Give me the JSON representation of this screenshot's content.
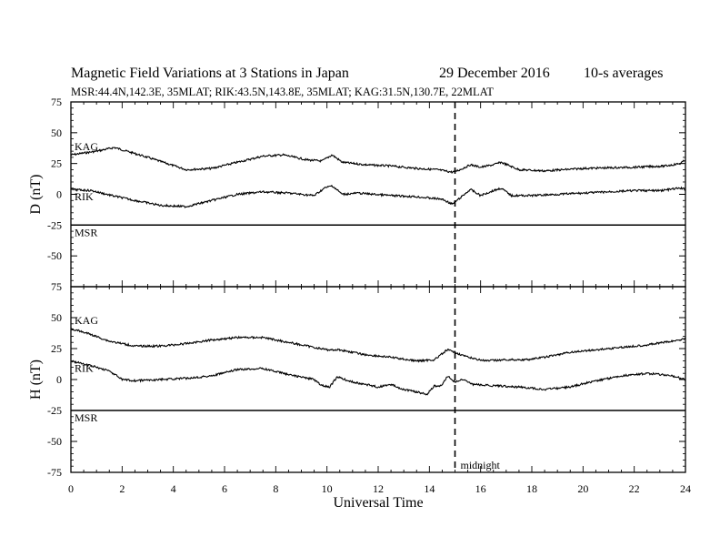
{
  "header": {
    "title": "Magnetic Field Variations at 3 Stations in Japan",
    "date": "29 December 2016",
    "averaging": "10-s averages",
    "stations": "MSR:44.4N,142.3E, 35MLAT;  RIK:43.5N,143.8E, 35MLAT;  KAG:31.5N,130.7E, 22MLAT"
  },
  "annotation": "midnight",
  "chart_data": [
    {
      "type": "line",
      "ylabel": "D (nT)",
      "xlabel": "",
      "xlim": [
        0,
        24
      ],
      "ylim": [
        -75,
        75
      ],
      "y_ticks": [
        -75,
        -50,
        -25,
        0,
        25,
        50,
        75
      ],
      "x_ticks": [
        0,
        2,
        4,
        6,
        8,
        10,
        12,
        14,
        16,
        18,
        20,
        22,
        24
      ],
      "vline_x": 15,
      "series": [
        {
          "name": "KAG",
          "x": [
            0,
            1,
            1.7,
            3,
            4.5,
            5.5,
            6.5,
            7.5,
            8.3,
            9.2,
            9.8,
            10.2,
            10.6,
            11.5,
            12.5,
            13.5,
            14.3,
            14.9,
            15.2,
            15.6,
            16,
            16.5,
            16.8,
            17.5,
            18.5,
            20,
            22,
            23.2,
            23.8,
            24
          ],
          "y": [
            32,
            35,
            38,
            30,
            20,
            21,
            26,
            31,
            32,
            28,
            27,
            32,
            26,
            24,
            23,
            21,
            20,
            18,
            20,
            24,
            22,
            24,
            26,
            20,
            19,
            21,
            22,
            23,
            25,
            28
          ]
        },
        {
          "name": "RIK",
          "x": [
            0,
            0.8,
            1.6,
            2.5,
            3.5,
            4.5,
            5.5,
            6.5,
            7.5,
            8.5,
            9.5,
            9.9,
            10.2,
            10.6,
            11.2,
            12.5,
            13.5,
            14.5,
            14.9,
            15.2,
            15.6,
            16,
            16.5,
            16.8,
            17.2,
            18,
            19,
            20,
            21,
            22,
            23,
            23.8,
            24
          ],
          "y": [
            4,
            3,
            -1,
            -5,
            -9,
            -10,
            -5,
            0,
            2,
            1,
            -1,
            5,
            7,
            0,
            1,
            -1,
            -2,
            -4,
            -8,
            -3,
            4,
            -1,
            3,
            5,
            -1,
            -1,
            0,
            1,
            2,
            3,
            3,
            5,
            4
          ]
        },
        {
          "name": "MSR",
          "x": [
            0,
            24
          ],
          "y": [
            -25,
            -25
          ]
        }
      ]
    },
    {
      "type": "line",
      "ylabel": "H (nT)",
      "xlabel": "Universal Time",
      "xlim": [
        0,
        24
      ],
      "ylim": [
        -75,
        75
      ],
      "y_ticks": [
        -75,
        -50,
        -25,
        0,
        25,
        50,
        75
      ],
      "x_ticks": [
        0,
        2,
        4,
        6,
        8,
        10,
        12,
        14,
        16,
        18,
        20,
        22,
        24
      ],
      "vline_x": 15,
      "series": [
        {
          "name": "KAG",
          "x": [
            0,
            0.7,
            1.5,
            2.5,
            3.5,
            4.5,
            5.5,
            6.5,
            7.5,
            8.5,
            9.5,
            10,
            10.5,
            11.5,
            12.5,
            13.5,
            14.2,
            14.7,
            15,
            15.5,
            16.2,
            17,
            17.8,
            18.5,
            19.5,
            21,
            22.5,
            23.5,
            24
          ],
          "y": [
            41,
            37,
            31,
            27,
            27,
            29,
            32,
            34,
            34,
            30,
            26,
            24,
            24,
            20,
            18,
            15,
            16,
            24,
            22,
            18,
            15,
            16,
            16,
            18,
            22,
            25,
            28,
            31,
            33
          ]
        },
        {
          "name": "RIK",
          "x": [
            0,
            0.8,
            1.5,
            2,
            2.5,
            3.5,
            4.5,
            5.5,
            6.5,
            7.5,
            8.5,
            9.5,
            9.8,
            10.1,
            10.4,
            11,
            12,
            12.5,
            13,
            13.5,
            13.9,
            14.2,
            14.5,
            14.7,
            15,
            15.3,
            15.7,
            16.5,
            17.5,
            18.5,
            19.5,
            20.5,
            21.5,
            22.5,
            23.5,
            24
          ],
          "y": [
            15,
            11,
            7,
            0,
            -1,
            0,
            1,
            3,
            8,
            9,
            4,
            0,
            -5,
            -6,
            2,
            -2,
            -6,
            -4,
            -8,
            -10,
            -12,
            -5,
            -5,
            3,
            -2,
            0,
            -4,
            -5,
            -6,
            -8,
            -6,
            -1,
            3,
            5,
            3,
            0
          ]
        },
        {
          "name": "MSR",
          "x": [
            0,
            24
          ],
          "y": [
            -25,
            -25
          ]
        }
      ]
    }
  ]
}
